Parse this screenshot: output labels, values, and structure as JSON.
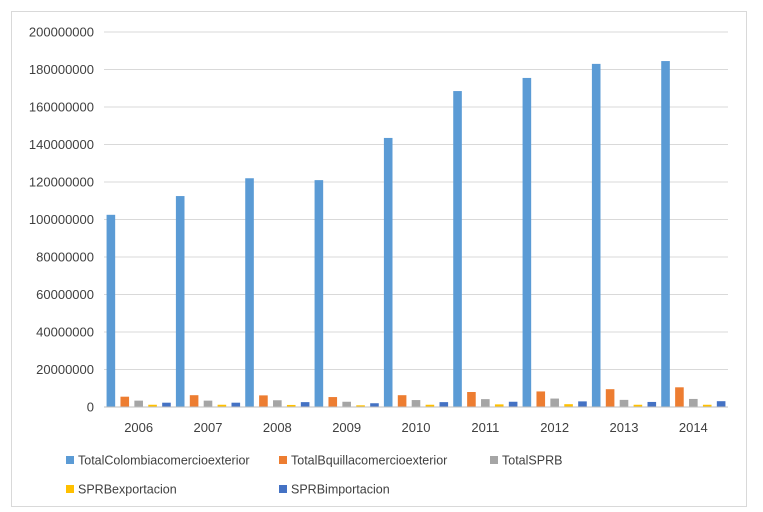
{
  "chart_data": {
    "type": "bar",
    "title": "",
    "xlabel": "",
    "ylabel": "",
    "categories": [
      "2006",
      "2007",
      "2008",
      "2009",
      "2010",
      "2011",
      "2012",
      "2013",
      "2014"
    ],
    "ylim": [
      0,
      200000000
    ],
    "yticks": [
      "0",
      "20000000",
      "40000000",
      "60000000",
      "80000000",
      "100000000",
      "120000000",
      "140000000",
      "160000000",
      "180000000",
      "200000000"
    ],
    "grid": true,
    "legend_position": "bottom",
    "series": [
      {
        "name": "TotalColombiacomercioexterior",
        "color": "#5b9bd5",
        "values": [
          102500000,
          112500000,
          122000000,
          121000000,
          143500000,
          168500000,
          175500000,
          183000000,
          184500000
        ]
      },
      {
        "name": "TotalBquillacomercioexterior",
        "color": "#ed7d31",
        "values": [
          5500000,
          6300000,
          6200000,
          5300000,
          6300000,
          8000000,
          8300000,
          9500000,
          10500000
        ]
      },
      {
        "name": "TotalSPRB",
        "color": "#a5a5a5",
        "values": [
          3400000,
          3400000,
          3600000,
          2800000,
          3700000,
          4200000,
          4500000,
          3800000,
          4300000
        ]
      },
      {
        "name": "SPRBexportacion",
        "color": "#ffc000",
        "values": [
          1200000,
          1200000,
          1100000,
          900000,
          1200000,
          1400000,
          1500000,
          1200000,
          1200000
        ]
      },
      {
        "name": "SPRBimportacion",
        "color": "#4472c4",
        "values": [
          2300000,
          2300000,
          2600000,
          2000000,
          2600000,
          2800000,
          3000000,
          2700000,
          3100000
        ]
      }
    ]
  }
}
